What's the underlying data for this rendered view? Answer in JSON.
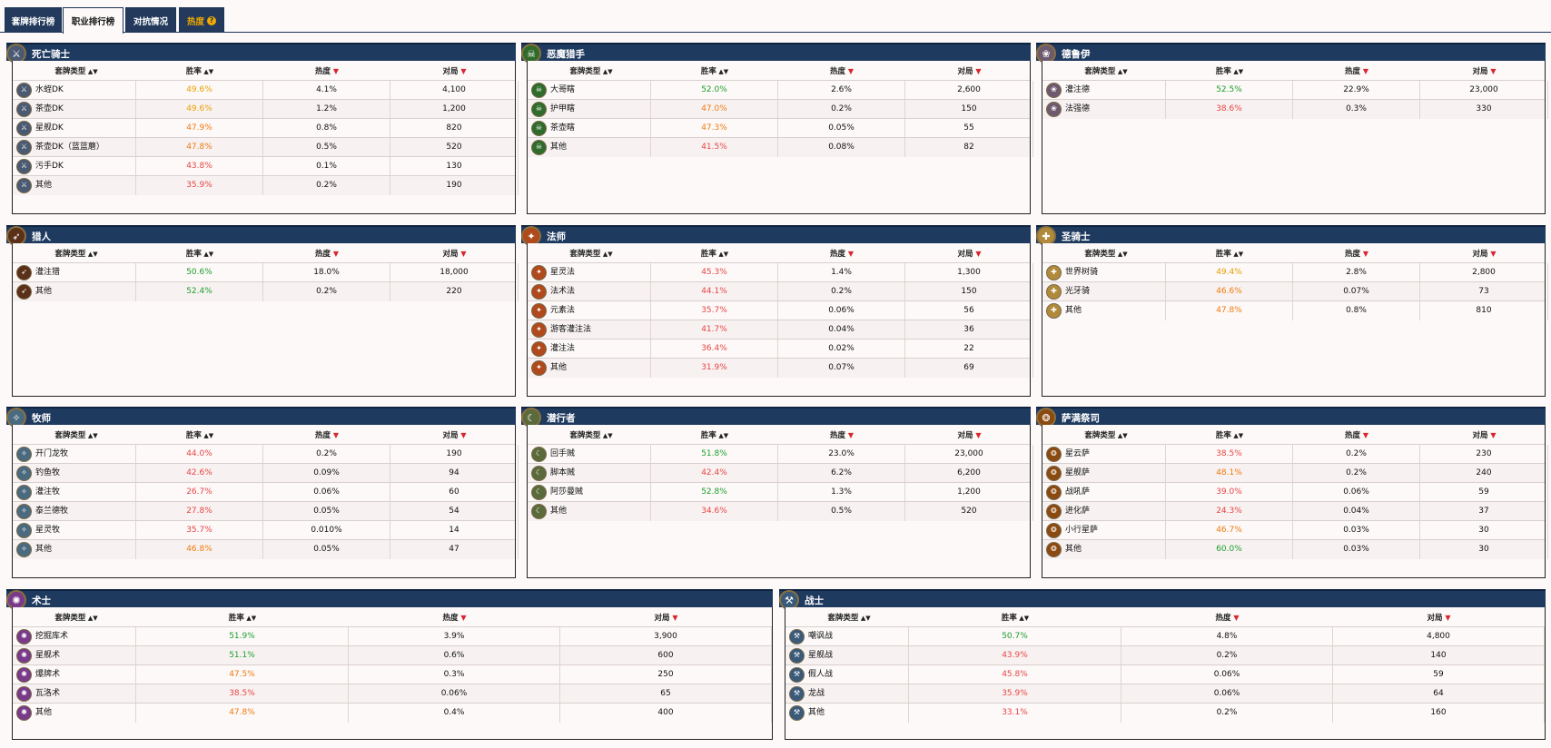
{
  "tabs": [
    {
      "label": "套牌排行榜"
    },
    {
      "label": "职业排行榜"
    },
    {
      "label": "对抗情况"
    },
    {
      "label": "热度"
    }
  ],
  "headers": {
    "deck_type": "套牌类型",
    "winrate": "胜率",
    "popularity": "热度",
    "games": "对局"
  },
  "classes": [
    {
      "name": "死亡骑士",
      "color": "#4a5a72",
      "glyph": "⚔",
      "rows": [
        {
          "deck": "水蛭DK",
          "wr": "49.6%",
          "wrc": "gold",
          "pop": "4.1%",
          "games": "4,100"
        },
        {
          "deck": "茶壶DK",
          "wr": "49.6%",
          "wrc": "gold",
          "pop": "1.2%",
          "games": "1,200"
        },
        {
          "deck": "星舰DK",
          "wr": "47.9%",
          "wrc": "orange",
          "pop": "0.8%",
          "games": "820"
        },
        {
          "deck": "茶壶DK（蓝蓝蘑）",
          "wr": "47.8%",
          "wrc": "orange",
          "pop": "0.5%",
          "games": "520"
        },
        {
          "deck": "污手DK",
          "wr": "43.8%",
          "wrc": "red",
          "pop": "0.1%",
          "games": "130"
        },
        {
          "deck": "其他",
          "wr": "35.9%",
          "wrc": "red",
          "pop": "0.2%",
          "games": "190"
        }
      ]
    },
    {
      "name": "恶魔猎手",
      "color": "#2f6b2a",
      "glyph": "☠",
      "rows": [
        {
          "deck": "大哥瞎",
          "wr": "52.0%",
          "wrc": "green",
          "pop": "2.6%",
          "games": "2,600"
        },
        {
          "deck": "护甲瞎",
          "wr": "47.0%",
          "wrc": "orange",
          "pop": "0.2%",
          "games": "150"
        },
        {
          "deck": "茶壶瞎",
          "wr": "47.3%",
          "wrc": "orange",
          "pop": "0.05%",
          "games": "55"
        },
        {
          "deck": "其他",
          "wr": "41.5%",
          "wrc": "red",
          "pop": "0.08%",
          "games": "82"
        }
      ]
    },
    {
      "name": "德鲁伊",
      "color": "#6e5a6e",
      "glyph": "❀",
      "rows": [
        {
          "deck": "灌注德",
          "wr": "52.5%",
          "wrc": "green",
          "pop": "22.9%",
          "games": "23,000"
        },
        {
          "deck": "法强德",
          "wr": "38.6%",
          "wrc": "red",
          "pop": "0.3%",
          "games": "330"
        }
      ]
    },
    {
      "name": "猎人",
      "color": "#5a3018",
      "glyph": "➶",
      "rows": [
        {
          "deck": "灌注猎",
          "wr": "50.6%",
          "wrc": "green",
          "pop": "18.0%",
          "games": "18,000"
        },
        {
          "deck": "其他",
          "wr": "52.4%",
          "wrc": "green",
          "pop": "0.2%",
          "games": "220"
        }
      ]
    },
    {
      "name": "法师",
      "color": "#b04a1c",
      "glyph": "✦",
      "rows": [
        {
          "deck": "星灵法",
          "wr": "45.3%",
          "wrc": "red",
          "pop": "1.4%",
          "games": "1,300"
        },
        {
          "deck": "法术法",
          "wr": "44.1%",
          "wrc": "red",
          "pop": "0.2%",
          "games": "150"
        },
        {
          "deck": "元素法",
          "wr": "35.7%",
          "wrc": "red",
          "pop": "0.06%",
          "games": "56"
        },
        {
          "deck": "游客灌注法",
          "wr": "41.7%",
          "wrc": "red",
          "pop": "0.04%",
          "games": "36"
        },
        {
          "deck": "灌注法",
          "wr": "36.4%",
          "wrc": "red",
          "pop": "0.02%",
          "games": "22"
        },
        {
          "deck": "其他",
          "wr": "31.9%",
          "wrc": "red",
          "pop": "0.07%",
          "games": "69"
        }
      ]
    },
    {
      "name": "圣骑士",
      "color": "#b08a3a",
      "glyph": "✚",
      "rows": [
        {
          "deck": "世界树骑",
          "wr": "49.4%",
          "wrc": "gold",
          "pop": "2.8%",
          "games": "2,800"
        },
        {
          "deck": "光牙骑",
          "wr": "46.6%",
          "wrc": "orange",
          "pop": "0.07%",
          "games": "73"
        },
        {
          "deck": "其他",
          "wr": "47.8%",
          "wrc": "orange",
          "pop": "0.8%",
          "games": "810"
        }
      ]
    },
    {
      "name": "牧师",
      "color": "#4a6a80",
      "glyph": "✧",
      "rows": [
        {
          "deck": "开门龙牧",
          "wr": "44.0%",
          "wrc": "red",
          "pop": "0.2%",
          "games": "190"
        },
        {
          "deck": "钓鱼牧",
          "wr": "42.6%",
          "wrc": "red",
          "pop": "0.09%",
          "games": "94"
        },
        {
          "deck": "灌注牧",
          "wr": "26.7%",
          "wrc": "red",
          "pop": "0.06%",
          "games": "60"
        },
        {
          "deck": "泰兰德牧",
          "wr": "27.8%",
          "wrc": "red",
          "pop": "0.05%",
          "games": "54"
        },
        {
          "deck": "星灵牧",
          "wr": "35.7%",
          "wrc": "red",
          "pop": "0.010%",
          "games": "14"
        },
        {
          "deck": "其他",
          "wr": "46.8%",
          "wrc": "orange",
          "pop": "0.05%",
          "games": "47"
        }
      ]
    },
    {
      "name": "潜行者",
      "color": "#5a6a3a",
      "glyph": "☾",
      "rows": [
        {
          "deck": "回手贼",
          "wr": "51.8%",
          "wrc": "green",
          "pop": "23.0%",
          "games": "23,000"
        },
        {
          "deck": "脚本贼",
          "wr": "42.4%",
          "wrc": "red",
          "pop": "6.2%",
          "games": "6,200"
        },
        {
          "deck": "阿莎曼贼",
          "wr": "52.8%",
          "wrc": "green",
          "pop": "1.3%",
          "games": "1,200"
        },
        {
          "deck": "其他",
          "wr": "34.6%",
          "wrc": "red",
          "pop": "0.5%",
          "games": "520"
        }
      ]
    },
    {
      "name": "萨满祭司",
      "color": "#8a4a10",
      "glyph": "❂",
      "rows": [
        {
          "deck": "星云萨",
          "wr": "38.5%",
          "wrc": "red",
          "pop": "0.2%",
          "games": "230"
        },
        {
          "deck": "星舰萨",
          "wr": "48.1%",
          "wrc": "orange",
          "pop": "0.2%",
          "games": "240"
        },
        {
          "deck": "战吼萨",
          "wr": "39.0%",
          "wrc": "red",
          "pop": "0.06%",
          "games": "59"
        },
        {
          "deck": "进化萨",
          "wr": "24.3%",
          "wrc": "red",
          "pop": "0.04%",
          "games": "37"
        },
        {
          "deck": "小行星萨",
          "wr": "46.7%",
          "wrc": "orange",
          "pop": "0.03%",
          "games": "30"
        },
        {
          "deck": "其他",
          "wr": "60.0%",
          "wrc": "green",
          "pop": "0.03%",
          "games": "30"
        }
      ]
    },
    {
      "name": "术士",
      "color": "#7a3a8a",
      "glyph": "✺",
      "rows": [
        {
          "deck": "挖掘库术",
          "wr": "51.9%",
          "wrc": "green",
          "pop": "3.9%",
          "games": "3,900"
        },
        {
          "deck": "星舰术",
          "wr": "51.1%",
          "wrc": "green",
          "pop": "0.6%",
          "games": "600"
        },
        {
          "deck": "爆牌术",
          "wr": "47.5%",
          "wrc": "orange",
          "pop": "0.3%",
          "games": "250"
        },
        {
          "deck": "瓦洛术",
          "wr": "38.5%",
          "wrc": "red",
          "pop": "0.06%",
          "games": "65"
        },
        {
          "deck": "其他",
          "wr": "47.8%",
          "wrc": "orange",
          "pop": "0.4%",
          "games": "400"
        }
      ]
    },
    {
      "name": "战士",
      "color": "#3a5a7a",
      "glyph": "⚒",
      "rows": [
        {
          "deck": "嘲讽战",
          "wr": "50.7%",
          "wrc": "green",
          "pop": "4.8%",
          "games": "4,800"
        },
        {
          "deck": "星舰战",
          "wr": "43.9%",
          "wrc": "red",
          "pop": "0.2%",
          "games": "140"
        },
        {
          "deck": "假人战",
          "wr": "45.8%",
          "wrc": "red",
          "pop": "0.06%",
          "games": "59"
        },
        {
          "deck": "龙战",
          "wr": "35.9%",
          "wrc": "red",
          "pop": "0.06%",
          "games": "64"
        },
        {
          "deck": "其他",
          "wr": "33.1%",
          "wrc": "red",
          "pop": "0.2%",
          "games": "160"
        }
      ]
    }
  ]
}
